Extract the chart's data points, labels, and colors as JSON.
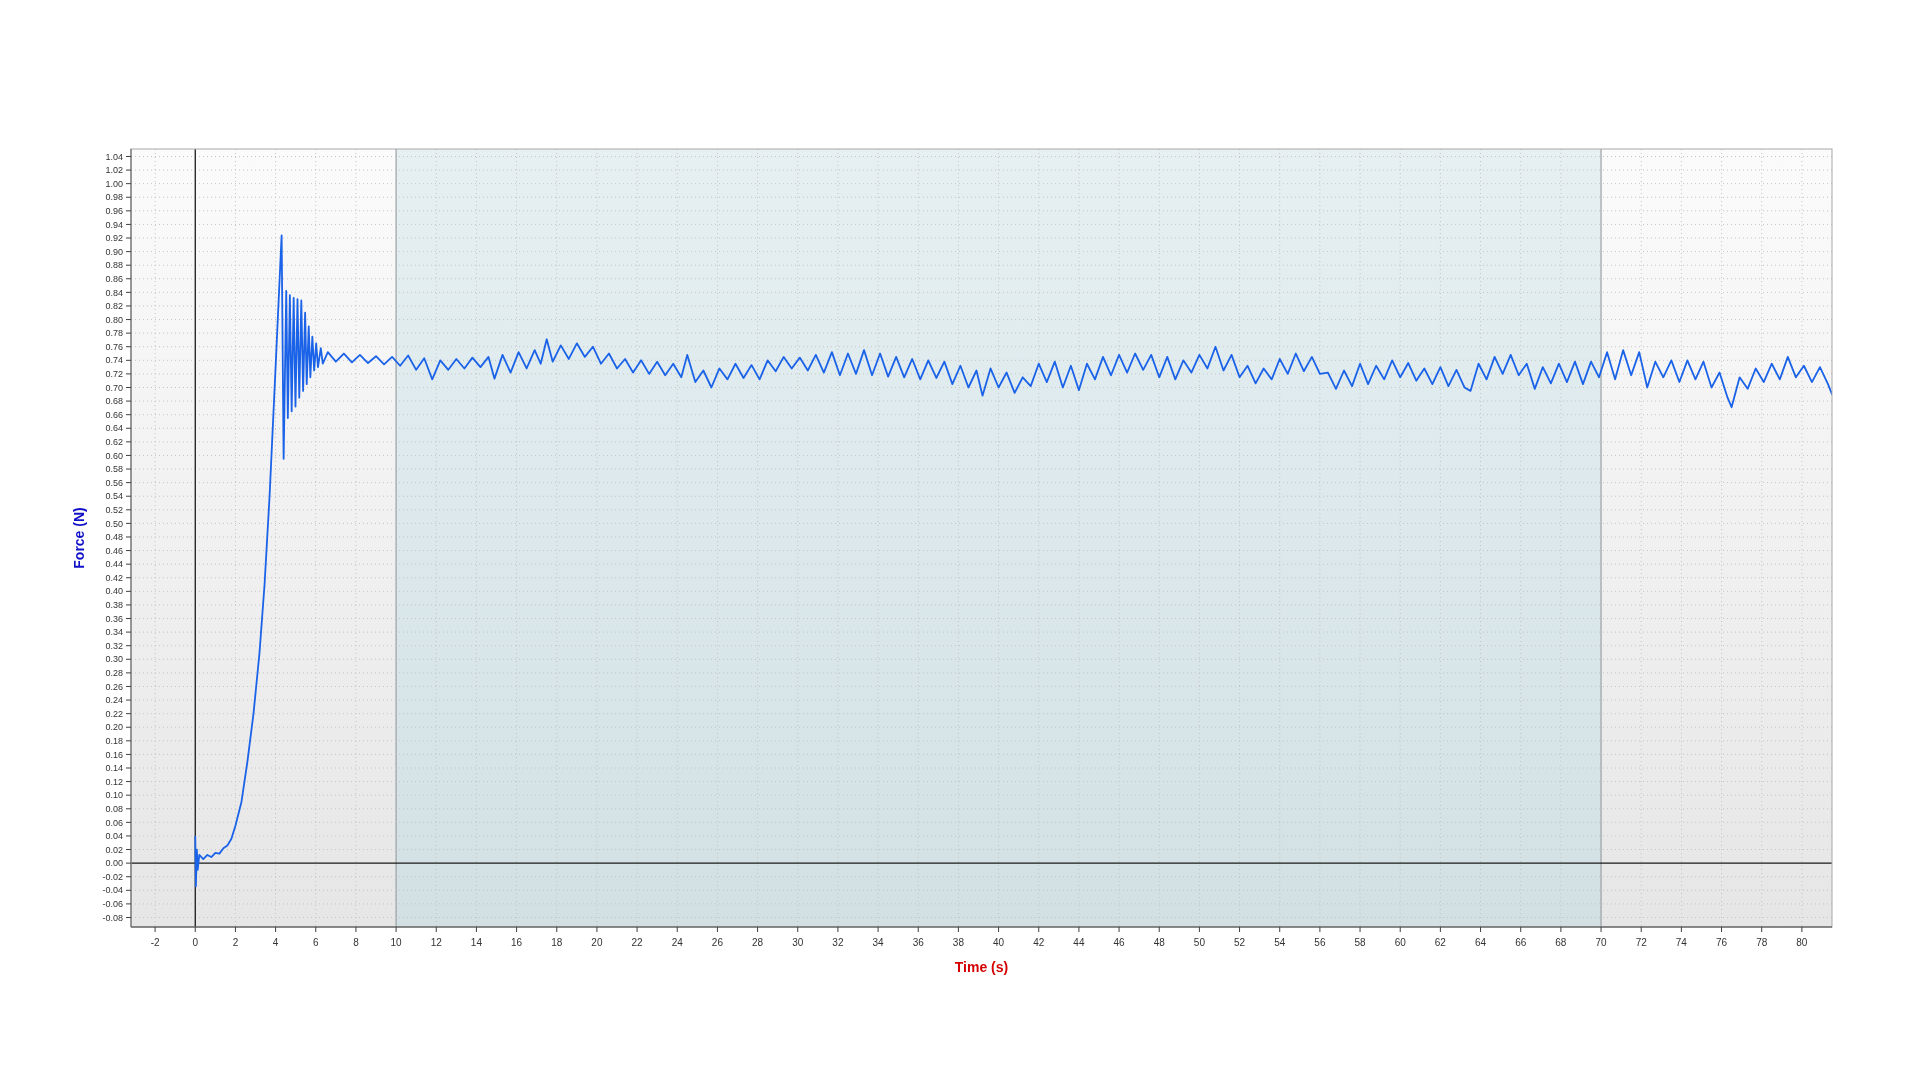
{
  "chart_data": {
    "type": "line",
    "xlabel": "Time (s)",
    "ylabel": "Force (N)",
    "xlim": [
      -3.2,
      81.5
    ],
    "ylim": [
      -0.094,
      1.051
    ],
    "xticks": [
      -2,
      0,
      2,
      4,
      6,
      8,
      10,
      12,
      14,
      16,
      18,
      20,
      22,
      24,
      26,
      28,
      30,
      32,
      34,
      36,
      38,
      40,
      42,
      44,
      46,
      48,
      50,
      52,
      54,
      56,
      58,
      60,
      62,
      64,
      66,
      68,
      70,
      72,
      74,
      76,
      78,
      80
    ],
    "yticks": [
      -0.08,
      -0.06,
      -0.04,
      -0.02,
      {
        "value": 0,
        "label": "0.00"
      },
      0.02,
      0.04,
      0.06,
      0.08,
      {
        "value": 0.1,
        "label": "0.10"
      },
      0.12,
      0.14,
      0.16,
      0.18,
      {
        "value": 0.2,
        "label": "0.20"
      },
      0.22,
      0.24,
      0.26,
      0.28,
      {
        "value": 0.3,
        "label": "0.30"
      },
      0.32,
      0.34,
      0.36,
      0.38,
      {
        "value": 0.4,
        "label": "0.40"
      },
      0.42,
      0.44,
      0.46,
      0.48,
      {
        "value": 0.5,
        "label": "0.50"
      },
      0.52,
      0.54,
      0.56,
      0.58,
      {
        "value": 0.6,
        "label": "0.60"
      },
      0.62,
      0.64,
      0.66,
      0.68,
      {
        "value": 0.7,
        "label": "0.70"
      },
      0.72,
      0.74,
      0.76,
      0.78,
      {
        "value": 0.8,
        "label": "0.80"
      },
      0.82,
      0.84,
      0.86,
      0.88,
      {
        "value": 0.9,
        "label": "0.90"
      },
      0.92,
      0.94,
      0.96,
      0.98,
      {
        "value": 1,
        "label": "1.00"
      },
      1.02,
      1.04
    ],
    "grid": true,
    "bands": [
      {
        "axis": "x",
        "from": 10,
        "to": 70,
        "color": "#dbe9ee"
      }
    ],
    "series": [
      {
        "color": "#1a62e8",
        "x": [
          0,
          0.03,
          0.08,
          0.12,
          0.2,
          0.4,
          0.6,
          0.8,
          1.0,
          1.2,
          1.4,
          1.6,
          1.8,
          2.0,
          2.3,
          2.6,
          2.9,
          3.2,
          3.45,
          3.7,
          4.0,
          4.3,
          4.4,
          4.53,
          4.61,
          4.71,
          4.8,
          4.9,
          4.99,
          5.09,
          5.18,
          5.28,
          5.37,
          5.47,
          5.55,
          5.65,
          5.73,
          5.83,
          5.92,
          6.02,
          6.11,
          6.25,
          6.35,
          6.6,
          7.0,
          7.4,
          7.8,
          8.2,
          8.6,
          9.0,
          9.4,
          9.8,
          10.2,
          10.6,
          11.0,
          11.4,
          11.8,
          12.2,
          12.6,
          13.0,
          13.4,
          13.8,
          14.2,
          14.6,
          14.9,
          15.3,
          15.7,
          16.1,
          16.5,
          16.9,
          17.2,
          17.5,
          17.8,
          18.2,
          18.6,
          19.0,
          19.4,
          19.8,
          20.2,
          20.6,
          21.0,
          21.4,
          21.8,
          22.2,
          22.6,
          23.0,
          23.4,
          23.8,
          24.2,
          24.5,
          24.9,
          25.3,
          25.7,
          26.1,
          26.5,
          26.9,
          27.3,
          27.7,
          28.1,
          28.5,
          28.9,
          29.3,
          29.7,
          30.1,
          30.5,
          30.9,
          31.3,
          31.7,
          32.1,
          32.5,
          32.9,
          33.3,
          33.7,
          34.1,
          34.5,
          34.9,
          35.3,
          35.7,
          36.1,
          36.5,
          36.9,
          37.3,
          37.7,
          38.1,
          38.5,
          38.9,
          39.2,
          39.6,
          40.0,
          40.4,
          40.8,
          41.2,
          41.6,
          42.0,
          42.4,
          42.8,
          43.2,
          43.6,
          44.0,
          44.4,
          44.8,
          45.2,
          45.6,
          46.0,
          46.4,
          46.8,
          47.2,
          47.6,
          48.0,
          48.4,
          48.8,
          49.2,
          49.6,
          50.0,
          50.4,
          50.8,
          51.2,
          51.6,
          52.0,
          52.4,
          52.8,
          53.2,
          53.6,
          54.0,
          54.4,
          54.8,
          55.2,
          55.6,
          56.0,
          56.4,
          56.8,
          57.2,
          57.6,
          58.0,
          58.4,
          58.8,
          59.2,
          59.6,
          60.0,
          60.4,
          60.8,
          61.2,
          61.6,
          62.0,
          62.4,
          62.8,
          63.2,
          63.5,
          63.9,
          64.3,
          64.7,
          65.1,
          65.5,
          65.9,
          66.3,
          66.7,
          67.1,
          67.5,
          67.9,
          68.3,
          68.7,
          69.1,
          69.5,
          69.9,
          70.3,
          70.7,
          71.1,
          71.5,
          71.9,
          72.3,
          72.7,
          73.1,
          73.5,
          73.9,
          74.3,
          74.7,
          75.1,
          75.5,
          75.9,
          76.3,
          76.5,
          76.9,
          77.3,
          77.7,
          78.1,
          78.5,
          78.9,
          79.3,
          79.7,
          80.1,
          80.5,
          80.9,
          81.3,
          81.5
        ],
        "values": [
          0.039,
          -0.034,
          0.02,
          -0.01,
          0.012,
          0.006,
          0.012,
          0.009,
          0.015,
          0.014,
          0.022,
          0.026,
          0.036,
          0.055,
          0.09,
          0.15,
          0.22,
          0.31,
          0.41,
          0.54,
          0.73,
          0.924,
          0.595,
          0.842,
          0.655,
          0.836,
          0.665,
          0.832,
          0.672,
          0.83,
          0.685,
          0.828,
          0.695,
          0.81,
          0.705,
          0.79,
          0.715,
          0.775,
          0.725,
          0.765,
          0.73,
          0.758,
          0.735,
          0.752,
          0.738,
          0.75,
          0.737,
          0.748,
          0.736,
          0.746,
          0.734,
          0.745,
          0.732,
          0.747,
          0.726,
          0.743,
          0.712,
          0.74,
          0.726,
          0.742,
          0.728,
          0.744,
          0.73,
          0.745,
          0.713,
          0.748,
          0.722,
          0.752,
          0.728,
          0.755,
          0.735,
          0.771,
          0.738,
          0.762,
          0.742,
          0.765,
          0.745,
          0.76,
          0.735,
          0.75,
          0.728,
          0.742,
          0.722,
          0.74,
          0.72,
          0.738,
          0.718,
          0.735,
          0.715,
          0.748,
          0.708,
          0.725,
          0.7,
          0.728,
          0.712,
          0.735,
          0.714,
          0.733,
          0.712,
          0.74,
          0.724,
          0.745,
          0.728,
          0.744,
          0.725,
          0.748,
          0.722,
          0.752,
          0.718,
          0.75,
          0.72,
          0.755,
          0.718,
          0.75,
          0.716,
          0.745,
          0.715,
          0.742,
          0.712,
          0.74,
          0.714,
          0.738,
          0.705,
          0.732,
          0.7,
          0.725,
          0.688,
          0.728,
          0.7,
          0.722,
          0.692,
          0.715,
          0.702,
          0.735,
          0.708,
          0.738,
          0.7,
          0.732,
          0.696,
          0.735,
          0.712,
          0.745,
          0.718,
          0.748,
          0.722,
          0.75,
          0.726,
          0.748,
          0.715,
          0.745,
          0.712,
          0.74,
          0.722,
          0.748,
          0.728,
          0.76,
          0.725,
          0.748,
          0.715,
          0.732,
          0.706,
          0.728,
          0.712,
          0.742,
          0.72,
          0.75,
          0.724,
          0.745,
          0.72,
          0.722,
          0.698,
          0.725,
          0.702,
          0.735,
          0.705,
          0.732,
          0.712,
          0.74,
          0.715,
          0.736,
          0.71,
          0.728,
          0.705,
          0.73,
          0.702,
          0.726,
          0.7,
          0.695,
          0.735,
          0.712,
          0.745,
          0.72,
          0.748,
          0.718,
          0.735,
          0.698,
          0.73,
          0.706,
          0.735,
          0.708,
          0.738,
          0.705,
          0.738,
          0.715,
          0.752,
          0.712,
          0.755,
          0.718,
          0.752,
          0.7,
          0.738,
          0.715,
          0.74,
          0.708,
          0.74,
          0.712,
          0.738,
          0.7,
          0.722,
          0.685,
          0.671,
          0.715,
          0.698,
          0.728,
          0.708,
          0.735,
          0.712,
          0.745,
          0.715,
          0.732,
          0.708,
          0.73,
          0.705,
          0.69
        ]
      }
    ]
  }
}
